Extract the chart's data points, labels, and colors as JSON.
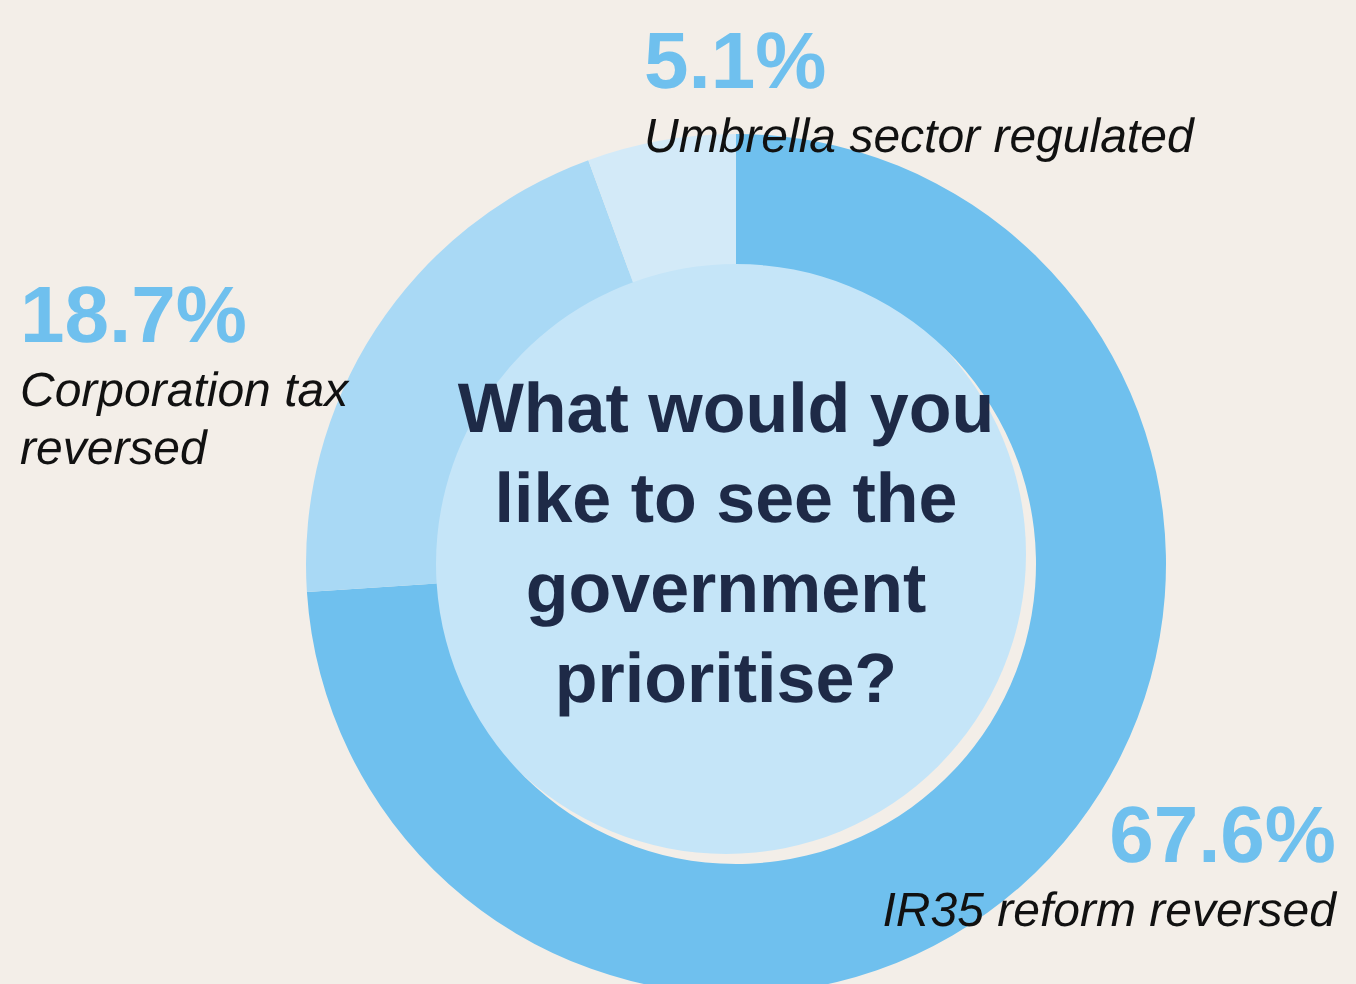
{
  "chart_data": {
    "type": "donut",
    "title": "What would you like to see the government prioritise?",
    "categories": [
      "IR35 reform reversed",
      "Corporation tax reversed",
      "Umbrella sector regulated"
    ],
    "values": [
      67.6,
      18.7,
      5.1
    ],
    "colors": [
      "#6fc0ee",
      "#a9d9f5",
      "#d3eaf8"
    ],
    "value_labels": [
      "67.6%",
      "18.7%",
      "5.1%"
    ]
  }
}
